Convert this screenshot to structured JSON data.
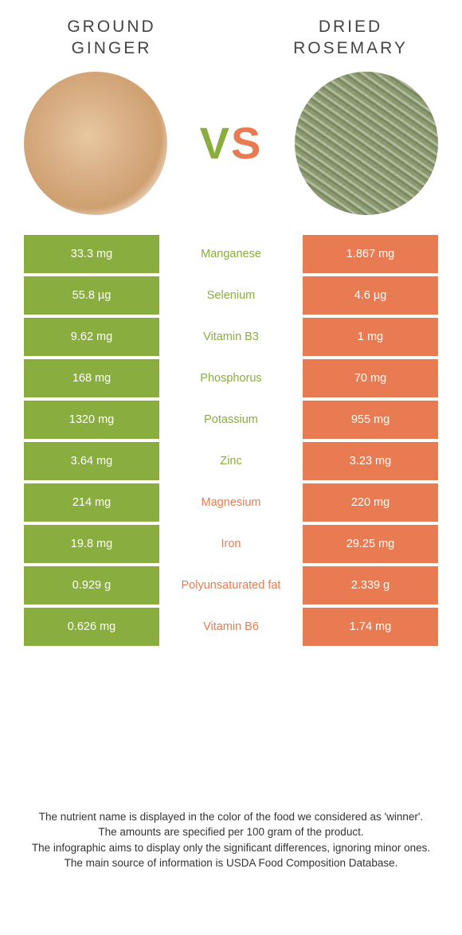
{
  "colors": {
    "green": "#8aad3f",
    "orange": "#e87b52"
  },
  "left": {
    "title": "GROUND GINGER"
  },
  "right": {
    "title": "DRIED ROSEMARY"
  },
  "vs": {
    "v": "V",
    "s": "S"
  },
  "rows": [
    {
      "left": "33.3 mg",
      "mid": "Manganese",
      "right": "1.867 mg",
      "winner": "green"
    },
    {
      "left": "55.8 µg",
      "mid": "Selenium",
      "right": "4.6 µg",
      "winner": "green"
    },
    {
      "left": "9.62 mg",
      "mid": "Vitamin B3",
      "right": "1 mg",
      "winner": "green"
    },
    {
      "left": "168 mg",
      "mid": "Phosphorus",
      "right": "70 mg",
      "winner": "green"
    },
    {
      "left": "1320 mg",
      "mid": "Potassium",
      "right": "955 mg",
      "winner": "green"
    },
    {
      "left": "3.64 mg",
      "mid": "Zinc",
      "right": "3.23 mg",
      "winner": "green"
    },
    {
      "left": "214 mg",
      "mid": "Magnesium",
      "right": "220 mg",
      "winner": "orange"
    },
    {
      "left": "19.8 mg",
      "mid": "Iron",
      "right": "29.25 mg",
      "winner": "orange"
    },
    {
      "left": "0.929 g",
      "mid": "Polyunsaturated fat",
      "right": "2.339 g",
      "winner": "orange"
    },
    {
      "left": "0.626 mg",
      "mid": "Vitamin B6",
      "right": "1.74 mg",
      "winner": "orange"
    }
  ],
  "footer": {
    "line1": "The nutrient name is displayed in the color of the food we considered as 'winner'.",
    "line2": "The amounts are specified per 100 gram of the product.",
    "line3": "The infographic aims to display only the significant differences, ignoring minor ones.",
    "line4": "The main source of information is USDA Food Composition Database."
  }
}
